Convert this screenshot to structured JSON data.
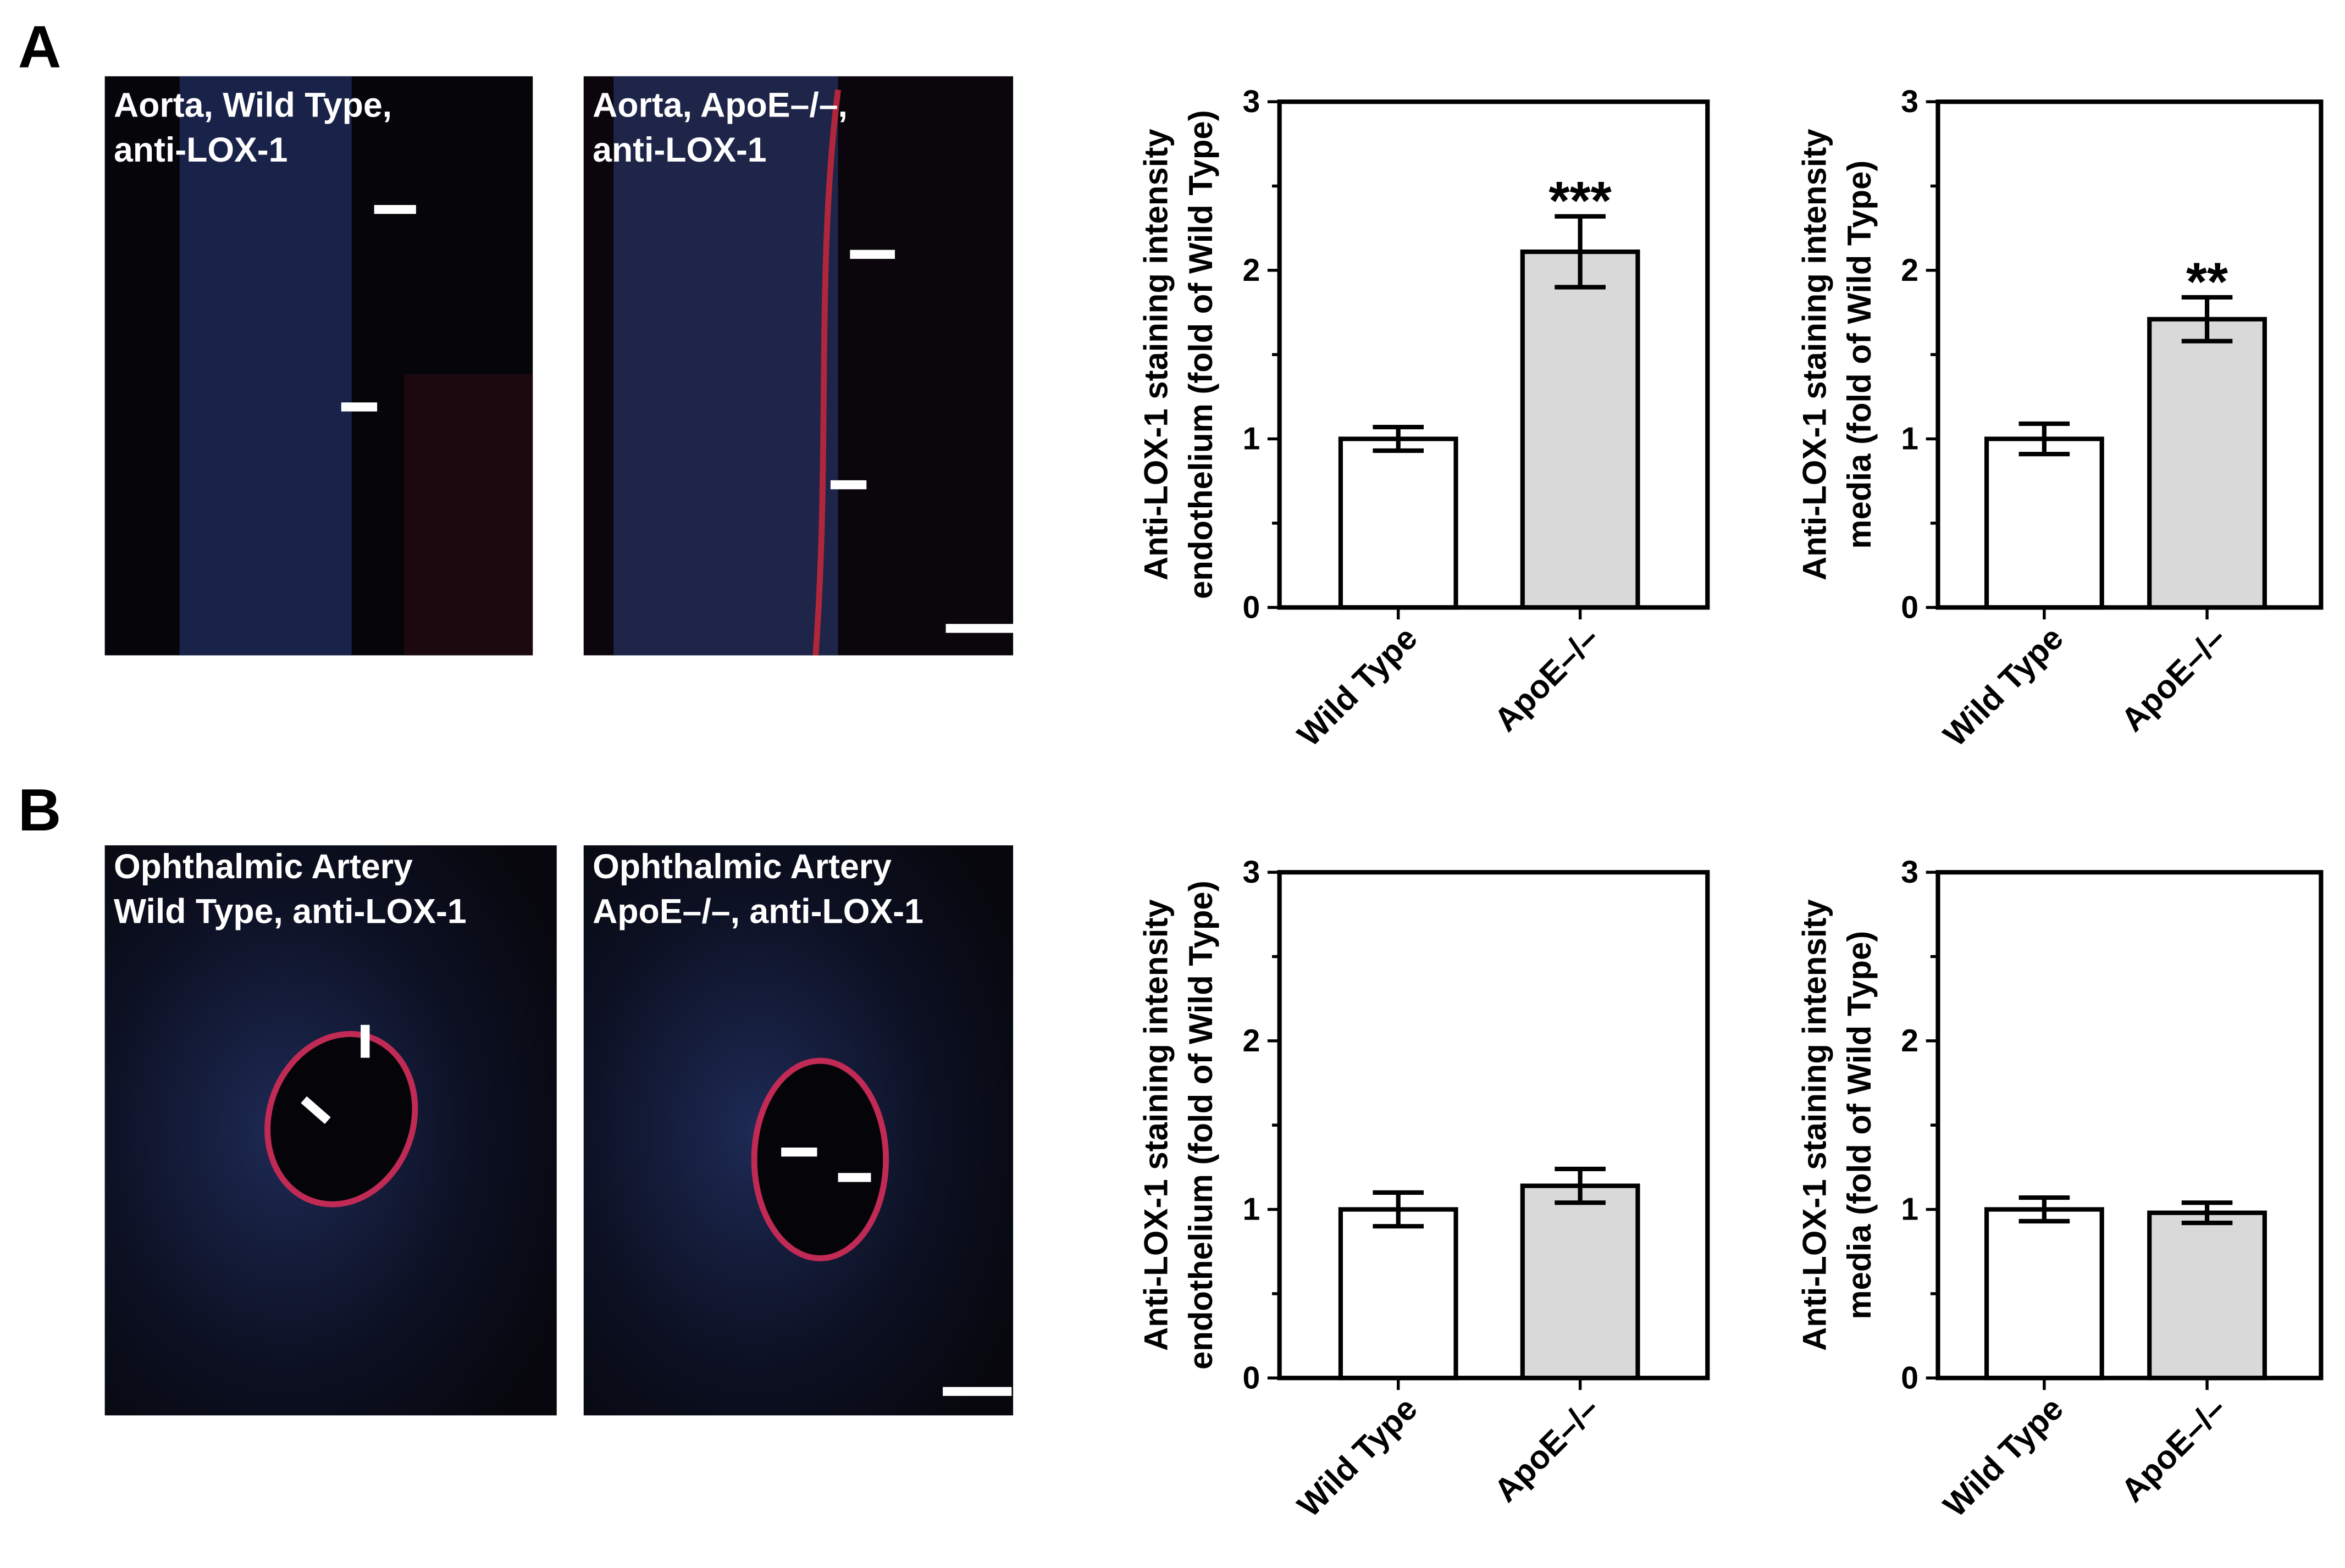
{
  "panel_labels": [
    "A",
    "B"
  ],
  "images": [
    {
      "caption": [
        "Aorta, Wild Type,",
        "anti-LOX-1"
      ]
    },
    {
      "caption": [
        "Aorta, ApoE–/–,",
        "anti-LOX-1"
      ]
    },
    {
      "caption": [
        "Ophthalmic Artery",
        "Wild Type, anti-LOX-1"
      ]
    },
    {
      "caption": [
        "Ophthalmic Artery",
        "ApoE–/–, anti-LOX-1"
      ]
    }
  ],
  "chart_data": [
    {
      "type": "bar",
      "ylabel": [
        "Anti-LOX-1 staining intensity",
        "endothelium (fold of Wild Type)"
      ],
      "categories": [
        "Wild Type",
        "ApoE–/–"
      ],
      "values": [
        1.0,
        2.11
      ],
      "errors": [
        0.07,
        0.21
      ],
      "colors": [
        "#ffffff",
        "#d9d9d9"
      ],
      "value_annotations": [
        null,
        "***"
      ],
      "ylim": [
        0,
        3
      ],
      "yticks": [
        0,
        1,
        2,
        3
      ],
      "minor_yticks": [
        0.5,
        1.5,
        2.5
      ]
    },
    {
      "type": "bar",
      "ylabel": [
        "Anti-LOX-1 staining intensity",
        "media (fold of Wild Type)"
      ],
      "categories": [
        "Wild Type",
        "ApoE–/–"
      ],
      "values": [
        1.0,
        1.71
      ],
      "errors": [
        0.09,
        0.13
      ],
      "colors": [
        "#ffffff",
        "#d9d9d9"
      ],
      "value_annotations": [
        null,
        "**"
      ],
      "ylim": [
        0,
        3
      ],
      "yticks": [
        0,
        1,
        2,
        3
      ],
      "minor_yticks": [
        0.5,
        1.5,
        2.5
      ]
    },
    {
      "type": "bar",
      "ylabel": [
        "Anti-LOX-1 staining intensity",
        "endothelium (fold of Wild Type)"
      ],
      "categories": [
        "Wild Type",
        "ApoE–/–"
      ],
      "values": [
        1.0,
        1.14
      ],
      "errors": [
        0.1,
        0.1
      ],
      "colors": [
        "#ffffff",
        "#d9d9d9"
      ],
      "ylim": [
        0,
        3
      ],
      "yticks": [
        0,
        1,
        2,
        3
      ],
      "minor_yticks": [
        0.5,
        1.5,
        2.5
      ]
    },
    {
      "type": "bar",
      "ylabel": [
        "Anti-LOX-1 staining intensity",
        "media (fold of Wild Type)"
      ],
      "categories": [
        "Wild Type",
        "ApoE–/–"
      ],
      "values": [
        1.0,
        0.98
      ],
      "errors": [
        0.07,
        0.06
      ],
      "colors": [
        "#ffffff",
        "#d9d9d9"
      ],
      "ylim": [
        0,
        3
      ],
      "yticks": [
        0,
        1,
        2,
        3
      ],
      "minor_yticks": [
        0.5,
        1.5,
        2.5
      ]
    }
  ]
}
